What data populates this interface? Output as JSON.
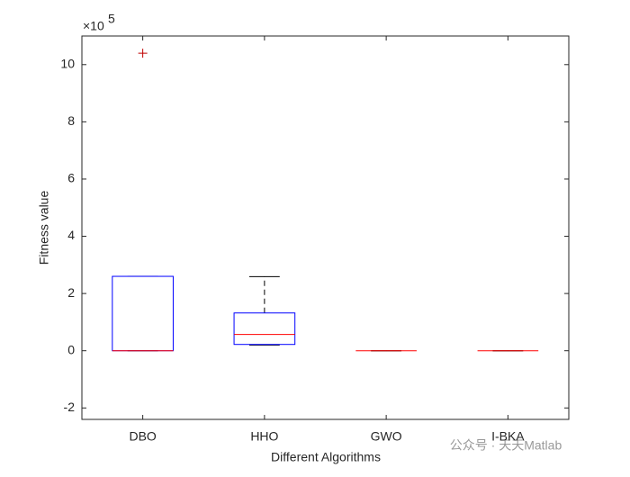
{
  "chart_data": {
    "type": "box",
    "xlabel": "Different Algorithms",
    "ylabel": "Fitness value",
    "y_multiplier": {
      "base": "×10",
      "exponent": "5"
    },
    "categories": [
      "DBO",
      "HHO",
      "GWO",
      "I-BKA"
    ],
    "boxes": [
      {
        "min": 0,
        "q1": 0,
        "median": 0,
        "q3": 2.6,
        "max": 2.6,
        "outliers": [
          10.4
        ]
      },
      {
        "min": 0.2,
        "q1": 0.22,
        "median": 0.57,
        "q3": 1.32,
        "max": 2.59,
        "outliers": []
      },
      {
        "min": 0,
        "q1": 0,
        "median": 0,
        "q3": 0,
        "max": 0,
        "outliers": []
      },
      {
        "min": 0,
        "q1": 0,
        "median": 0,
        "q3": 0,
        "max": 0,
        "outliers": []
      }
    ],
    "box_color": "#0000ff",
    "median_color": "#ff0000",
    "whisker_color": "#000000",
    "outlier_color": "#c00000",
    "ylim": [
      -2.4,
      11
    ],
    "yticks": [
      -2,
      0,
      2,
      4,
      6,
      8,
      10
    ],
    "watermark": "公众号 · 天天Matlab"
  }
}
